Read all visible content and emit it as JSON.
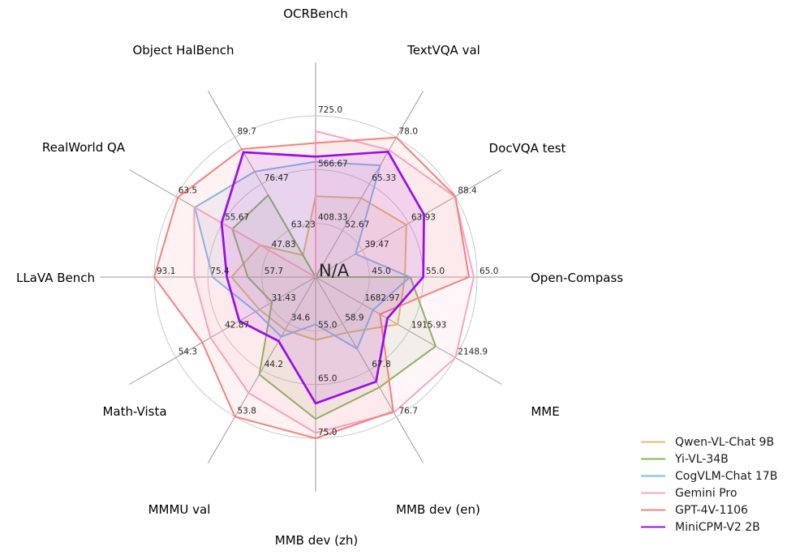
{
  "chart_data": {
    "type": "radar",
    "title": "",
    "center_label": "N/A",
    "legend_position": "lower right",
    "grid": {
      "rings": 3,
      "ring_color": "#c8c8c8",
      "spoke_color": "#9a9a9a",
      "background": "#ffffff"
    },
    "axes": [
      {
        "label": "OCRBench",
        "min": 250,
        "max": 725,
        "ticks": [
          "408.33",
          "566.67",
          "725.0"
        ]
      },
      {
        "label": "TextVQA val",
        "min": 40,
        "max": 78,
        "ticks": [
          "52.67",
          "65.33",
          "78.0"
        ]
      },
      {
        "label": "DocVQA test",
        "min": 15,
        "max": 88.4,
        "ticks": [
          "39.47",
          "63.93",
          "88.4"
        ]
      },
      {
        "label": "Open-Compass",
        "min": 35,
        "max": 65,
        "ticks": [
          "45.0",
          "55.0",
          "65.0"
        ]
      },
      {
        "label": "MME",
        "min": 1450,
        "max": 2148.9,
        "ticks": [
          "1682.97",
          "1915.93",
          "2148.9"
        ]
      },
      {
        "label": "MMB dev (en)",
        "min": 50,
        "max": 76.7,
        "ticks": [
          "58.9",
          "67.8",
          "76.7"
        ]
      },
      {
        "label": "MMB dev (zh)",
        "min": 45,
        "max": 75,
        "ticks": [
          "55.0",
          "65.0",
          "75.0"
        ]
      },
      {
        "label": "MMMU val",
        "min": 25,
        "max": 53.8,
        "ticks": [
          "34.6",
          "44.2",
          "53.8"
        ]
      },
      {
        "label": "Math-Vista",
        "min": 20,
        "max": 54.3,
        "ticks": [
          "31.43",
          "42.87",
          "54.3"
        ]
      },
      {
        "label": "LLaVA Bench",
        "min": 40,
        "max": 93.1,
        "ticks": [
          "57.7",
          "75.4",
          "93.1"
        ]
      },
      {
        "label": "RealWorld QA",
        "min": 40,
        "max": 63.5,
        "ticks": [
          "47.83",
          "55.67",
          "63.5"
        ]
      },
      {
        "label": "Object HalBench",
        "min": 50,
        "max": 89.7,
        "ticks": [
          "63.23",
          "76.47",
          "89.7"
        ]
      }
    ],
    "series": [
      {
        "name": "Qwen-VL-Chat 9B",
        "color": "#e4ba6a",
        "line_width": 2,
        "values": [
          488,
          61.5,
          62.6,
          51.6,
          1860.0,
          60.6,
          56.7,
          35.9,
          33.8,
          67.7,
          49.3,
          56.2
        ]
      },
      {
        "name": "Yi-VL-34B",
        "color": "#82b456",
        "line_width": 2,
        "values": [
          null,
          43.4,
          null,
          52.6,
          2050.2,
          71.1,
          71.4,
          45.1,
          30.7,
          62.3,
          54.0,
          73.3
        ]
      },
      {
        "name": "CogVLM-Chat 17B",
        "color": "#7ab8f0",
        "line_width": 2,
        "values": [
          590,
          70.4,
          36.0,
          52.5,
          1736.6,
          63.7,
          53.8,
          37.3,
          34.7,
          73.9,
          60.3,
          80.0
        ]
      },
      {
        "name": "Gemini Pro",
        "color": "#f7a6c7",
        "line_width": 2,
        "values": [
          680,
          74.6,
          88.1,
          64.4,
          2148.9,
          75.9,
          74.0,
          48.9,
          45.8,
          79.9,
          60.4,
          null
        ]
      },
      {
        "name": "GPT-4V-1106",
        "color": "#f1837c",
        "line_width": 2,
        "values": [
          645,
          78.0,
          88.4,
          63.5,
          1771.5,
          75.7,
          75.0,
          53.8,
          47.8,
          93.1,
          63.2,
          86.4
        ]
      },
      {
        "name": "MiniCPM-V2 2B",
        "color": "#9a0ee6",
        "line_width": 2.7,
        "values": [
          605,
          74.1,
          71.9,
          55.0,
          1808.6,
          70.0,
          68.5,
          38.2,
          38.7,
          69.2,
          55.8,
          85.5
        ]
      }
    ]
  }
}
